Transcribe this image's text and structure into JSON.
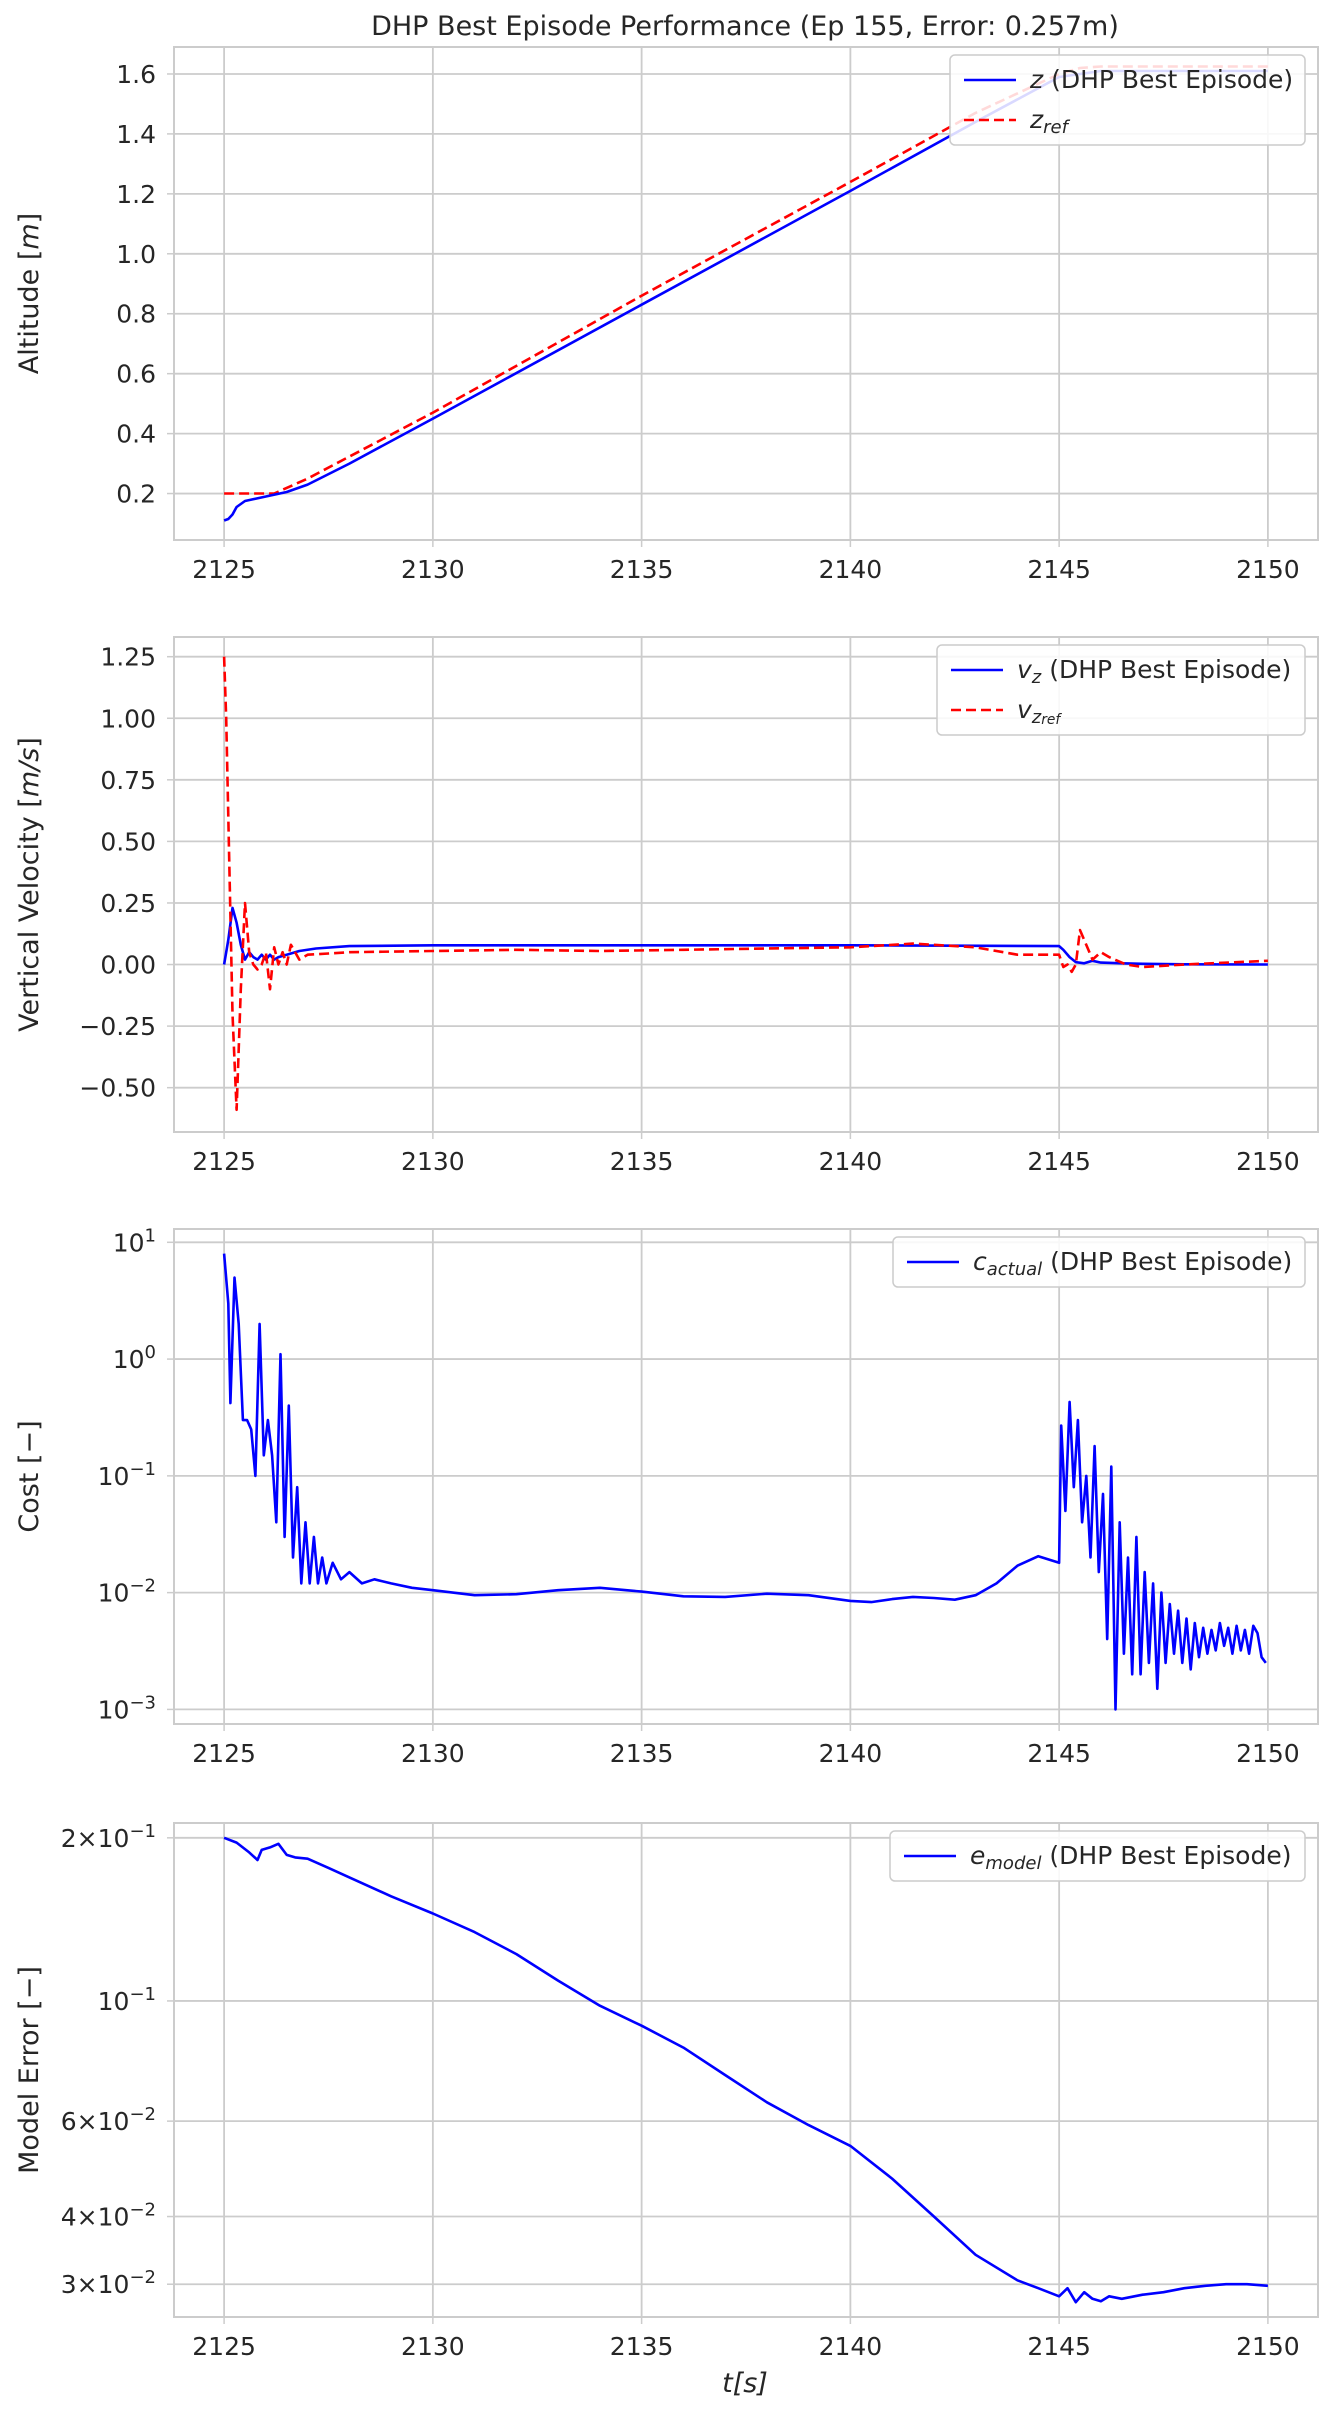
{
  "figure": {
    "title": "DHP Best Episode Performance (Ep 155, Error: 0.257m)",
    "xlabel": "t[s]"
  },
  "colors": {
    "actual": "#0000ff",
    "reference": "#ff0000",
    "grid": "#cccccc",
    "text": "#262626"
  },
  "chart_data": [
    {
      "type": "line",
      "title": "DHP Best Episode Performance (Ep 155, Error: 0.257m)",
      "xlabel": "",
      "ylabel": "Altitude [m]",
      "xlim": [
        2123.8,
        2151.2
      ],
      "ylim": [
        0.045,
        1.69
      ],
      "x_ticks": [
        "2125",
        "2130",
        "2135",
        "2140",
        "2145",
        "2150"
      ],
      "y_ticks": [
        "0.2",
        "0.4",
        "0.6",
        "0.8",
        "1.0",
        "1.2",
        "1.4",
        "1.6"
      ],
      "y_tick_values": [
        0.2,
        0.4,
        0.6,
        0.8,
        1.0,
        1.2,
        1.4,
        1.6
      ],
      "grid": true,
      "legend_position": "top-right",
      "series": [
        {
          "name": "z (DHP Best Episode)",
          "style": "solid",
          "color": "#0000ff",
          "x": [
            2125,
            2125.1,
            2125.2,
            2125.3,
            2125.5,
            2126.0,
            2126.5,
            2127.0,
            2128.0,
            2130.0,
            2135.0,
            2140.0,
            2143.0,
            2145.0,
            2146.0,
            2148.0,
            2150.0
          ],
          "y": [
            0.11,
            0.115,
            0.13,
            0.155,
            0.175,
            0.19,
            0.205,
            0.23,
            0.3,
            0.45,
            0.83,
            1.21,
            1.44,
            1.59,
            1.61,
            1.61,
            1.61
          ]
        },
        {
          "name": "z_ref",
          "style": "dashed",
          "color": "#ff0000",
          "x": [
            2125,
            2126.2,
            2127.0,
            2130.0,
            2135.0,
            2140.0,
            2143.0,
            2145.0,
            2145.5,
            2146.0,
            2148.0,
            2150.0
          ],
          "y": [
            0.2,
            0.2,
            0.25,
            0.47,
            0.86,
            1.24,
            1.47,
            1.6,
            1.62,
            1.625,
            1.625,
            1.625
          ]
        }
      ]
    },
    {
      "type": "line",
      "xlabel": "",
      "ylabel": "Vertical Velocity [m/s]",
      "xlim": [
        2123.8,
        2151.2
      ],
      "ylim": [
        -0.68,
        1.33
      ],
      "x_ticks": [
        "2125",
        "2130",
        "2135",
        "2140",
        "2145",
        "2150"
      ],
      "y_ticks": [
        "1.25",
        "1.00",
        "0.75",
        "0.50",
        "0.25",
        "0.00",
        "−0.25",
        "−0.50"
      ],
      "y_tick_values": [
        1.25,
        1.0,
        0.75,
        0.5,
        0.25,
        0.0,
        -0.25,
        -0.5
      ],
      "grid": true,
      "legend_position": "top-right",
      "series": [
        {
          "name": "v_z (DHP Best Episode)",
          "style": "solid",
          "color": "#0000ff",
          "x": [
            2125,
            2125.1,
            2125.2,
            2125.3,
            2125.4,
            2125.5,
            2125.6,
            2125.7,
            2125.8,
            2125.9,
            2126.0,
            2126.1,
            2126.2,
            2126.3,
            2126.5,
            2126.8,
            2127.2,
            2128.0,
            2130.0,
            2135.0,
            2140.0,
            2145.0,
            2145.1,
            2145.25,
            2145.4,
            2145.6,
            2145.8,
            2146.0,
            2146.5,
            2147.0,
            2148.0,
            2150.0
          ],
          "y": [
            0.0,
            0.1,
            0.23,
            0.17,
            0.08,
            0.02,
            0.05,
            0.03,
            0.02,
            0.04,
            0.02,
            0.04,
            0.02,
            0.03,
            0.04,
            0.055,
            0.065,
            0.075,
            0.078,
            0.078,
            0.078,
            0.075,
            0.06,
            0.03,
            0.01,
            0.005,
            0.015,
            0.008,
            0.005,
            0.003,
            0.001,
            0.0
          ]
        },
        {
          "name": "v_z_ref",
          "style": "dashed",
          "color": "#ff0000",
          "x": [
            2125,
            2125.05,
            2125.1,
            2125.2,
            2125.3,
            2125.4,
            2125.5,
            2125.6,
            2125.7,
            2125.8,
            2125.9,
            2126.0,
            2126.1,
            2126.2,
            2126.3,
            2126.4,
            2126.5,
            2126.6,
            2126.8,
            2127.0,
            2127.5,
            2128.0,
            2130.0,
            2132.0,
            2134.0,
            2136.0,
            2138.0,
            2140.0,
            2141.5,
            2143.0,
            2144.0,
            2145.0,
            2145.1,
            2145.2,
            2145.3,
            2145.4,
            2145.5,
            2145.6,
            2145.8,
            2146.0,
            2146.2,
            2146.6,
            2147.0,
            2148.0,
            2150.0
          ],
          "y": [
            1.25,
            1.0,
            0.6,
            -0.2,
            -0.59,
            -0.1,
            0.25,
            0.05,
            0.0,
            -0.02,
            0.0,
            0.05,
            -0.1,
            0.07,
            0.0,
            0.05,
            0.0,
            0.08,
            0.02,
            0.04,
            0.045,
            0.05,
            0.055,
            0.06,
            0.055,
            0.06,
            0.065,
            0.07,
            0.085,
            0.07,
            0.04,
            0.04,
            -0.01,
            0.0,
            -0.03,
            0.0,
            0.14,
            0.1,
            0.02,
            0.05,
            0.03,
            0.0,
            -0.01,
            0.0,
            0.015
          ]
        }
      ]
    },
    {
      "type": "line",
      "xlabel": "",
      "ylabel": "Cost [−]",
      "yscale": "log",
      "xlim": [
        2123.8,
        2151.2
      ],
      "ylim": [
        0.00075,
        13.0
      ],
      "x_ticks": [
        "2125",
        "2130",
        "2135",
        "2140",
        "2145",
        "2150"
      ],
      "y_ticks": [
        "10^1",
        "10^0",
        "10^−1",
        "10^−2",
        "10^−3"
      ],
      "y_tick_values": [
        10,
        1,
        0.1,
        0.01,
        0.001
      ],
      "grid": true,
      "legend_position": "top-right",
      "series": [
        {
          "name": "c_actual (DHP Best Episode)",
          "style": "solid",
          "color": "#0000ff",
          "x": [
            2125.0,
            2125.1,
            2125.15,
            2125.25,
            2125.35,
            2125.45,
            2125.55,
            2125.65,
            2125.75,
            2125.85,
            2125.95,
            2126.05,
            2126.15,
            2126.25,
            2126.35,
            2126.45,
            2126.55,
            2126.65,
            2126.75,
            2126.85,
            2126.95,
            2127.05,
            2127.15,
            2127.25,
            2127.35,
            2127.45,
            2127.6,
            2127.8,
            2128.0,
            2128.3,
            2128.6,
            2129.0,
            2129.5,
            2130.0,
            2131.0,
            2132.0,
            2133.0,
            2134.0,
            2135.0,
            2136.0,
            2137.0,
            2138.0,
            2139.0,
            2140.0,
            2140.5,
            2141.0,
            2141.5,
            2142.0,
            2142.5,
            2143.0,
            2143.5,
            2144.0,
            2144.5,
            2145.0,
            2145.05,
            2145.15,
            2145.25,
            2145.35,
            2145.45,
            2145.55,
            2145.65,
            2145.75,
            2145.85,
            2145.95,
            2146.05,
            2146.15,
            2146.25,
            2146.35,
            2146.45,
            2146.55,
            2146.65,
            2146.75,
            2146.85,
            2146.95,
            2147.05,
            2147.15,
            2147.25,
            2147.35,
            2147.45,
            2147.55,
            2147.65,
            2147.75,
            2147.85,
            2147.95,
            2148.05,
            2148.15,
            2148.25,
            2148.35,
            2148.45,
            2148.55,
            2148.65,
            2148.75,
            2148.85,
            2148.95,
            2149.05,
            2149.15,
            2149.25,
            2149.35,
            2149.45,
            2149.55,
            2149.65,
            2149.75,
            2149.85,
            2149.95
          ],
          "y": [
            8.0,
            3.0,
            0.42,
            5.0,
            2.0,
            0.3,
            0.3,
            0.25,
            0.1,
            2.0,
            0.15,
            0.3,
            0.15,
            0.04,
            1.1,
            0.03,
            0.4,
            0.02,
            0.08,
            0.012,
            0.04,
            0.012,
            0.03,
            0.012,
            0.02,
            0.012,
            0.018,
            0.013,
            0.015,
            0.012,
            0.013,
            0.012,
            0.011,
            0.0105,
            0.0095,
            0.0097,
            0.0105,
            0.011,
            0.0102,
            0.0093,
            0.0092,
            0.0098,
            0.0095,
            0.0085,
            0.0083,
            0.0088,
            0.0092,
            0.009,
            0.0087,
            0.0095,
            0.012,
            0.017,
            0.0205,
            0.018,
            0.27,
            0.05,
            0.43,
            0.08,
            0.3,
            0.04,
            0.1,
            0.02,
            0.18,
            0.015,
            0.07,
            0.004,
            0.12,
            0.001,
            0.04,
            0.003,
            0.02,
            0.002,
            0.03,
            0.002,
            0.015,
            0.0025,
            0.012,
            0.0015,
            0.01,
            0.0025,
            0.008,
            0.003,
            0.007,
            0.0025,
            0.006,
            0.0022,
            0.0055,
            0.0028,
            0.005,
            0.003,
            0.0048,
            0.0032,
            0.0055,
            0.0035,
            0.005,
            0.003,
            0.0052,
            0.0032,
            0.0048,
            0.003,
            0.0052,
            0.0045,
            0.0028,
            0.0025
          ]
        }
      ]
    },
    {
      "type": "line",
      "xlabel": "t[s]",
      "ylabel": "Model Error [−]",
      "yscale": "log",
      "xlim": [
        2123.8,
        2151.2
      ],
      "ylim": [
        0.0261,
        0.213
      ],
      "x_ticks": [
        "2125",
        "2130",
        "2135",
        "2140",
        "2145",
        "2150"
      ],
      "y_ticks": [
        "2×10^−1",
        "10^−1",
        "6×10^−2",
        "4×10^−2",
        "3×10^−2"
      ],
      "y_tick_values": [
        0.2,
        0.1,
        0.06,
        0.04,
        0.03
      ],
      "grid": true,
      "legend_position": "top-right",
      "series": [
        {
          "name": "e_model (DHP Best Episode)",
          "style": "solid",
          "color": "#0000ff",
          "x": [
            2125.0,
            2125.3,
            2125.6,
            2125.8,
            2125.9,
            2126.1,
            2126.3,
            2126.5,
            2126.7,
            2127.0,
            2127.5,
            2128.0,
            2129.0,
            2130.0,
            2131.0,
            2132.0,
            2133.0,
            2134.0,
            2135.0,
            2136.0,
            2137.0,
            2138.0,
            2139.0,
            2140.0,
            2141.0,
            2142.0,
            2143.0,
            2144.0,
            2144.5,
            2145.0,
            2145.2,
            2145.4,
            2145.6,
            2145.8,
            2146.0,
            2146.2,
            2146.5,
            2147.0,
            2147.5,
            2148.0,
            2148.5,
            2149.0,
            2149.5,
            2150.0
          ],
          "y": [
            0.2,
            0.196,
            0.188,
            0.182,
            0.19,
            0.192,
            0.195,
            0.186,
            0.184,
            0.183,
            0.176,
            0.169,
            0.156,
            0.145,
            0.134,
            0.122,
            0.109,
            0.098,
            0.09,
            0.082,
            0.073,
            0.065,
            0.059,
            0.054,
            0.047,
            0.04,
            0.034,
            0.0305,
            0.0295,
            0.0285,
            0.0295,
            0.0278,
            0.029,
            0.0282,
            0.0279,
            0.0285,
            0.0282,
            0.0287,
            0.029,
            0.0295,
            0.0298,
            0.03,
            0.03,
            0.0298
          ]
        }
      ]
    }
  ]
}
